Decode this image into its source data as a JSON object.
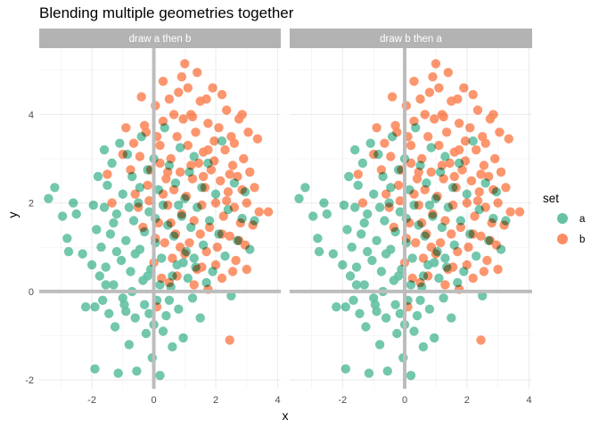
{
  "chart_data": {
    "type": "scatter",
    "title": "Blending multiple geometries together",
    "xlabel": "x",
    "ylabel": "y",
    "xlim": [
      -3.7,
      4.1
    ],
    "ylim": [
      -2.2,
      5.5
    ],
    "x_ticks": [
      -2,
      0,
      2,
      4
    ],
    "y_ticks": [
      -2,
      0,
      2,
      4
    ],
    "grid": true,
    "reference_lines": {
      "vertical_x": 0,
      "horizontal_y": 0
    },
    "legend": {
      "title": "set",
      "position": "right",
      "entries": [
        {
          "name": "a",
          "color": "#66c2a5"
        },
        {
          "name": "b",
          "color": "#fc8d62"
        }
      ]
    },
    "blend_color": "#6b8350",
    "panels": [
      {
        "strip": "draw a then b",
        "draw_order": [
          "a",
          "b"
        ]
      },
      {
        "strip": "draw b then a",
        "draw_order": [
          "b",
          "a"
        ]
      }
    ],
    "series": [
      {
        "name": "a",
        "color": "#66c2a5",
        "points": [
          [
            -3.4,
            2.1
          ],
          [
            -3.2,
            2.35
          ],
          [
            -2.95,
            1.7
          ],
          [
            -2.8,
            1.2
          ],
          [
            -2.75,
            0.9
          ],
          [
            -2.6,
            2.0
          ],
          [
            -2.3,
            0.85
          ],
          [
            -2.2,
            -0.35
          ],
          [
            -2.0,
            0.6
          ],
          [
            -1.95,
            1.95
          ],
          [
            -1.9,
            -1.75
          ],
          [
            -1.85,
            1.4
          ],
          [
            -1.8,
            2.6
          ],
          [
            -1.75,
            0.35
          ],
          [
            -1.7,
            1.0
          ],
          [
            -1.65,
            -0.2
          ],
          [
            -1.6,
            1.9
          ],
          [
            -1.55,
            0.55
          ],
          [
            -1.5,
            2.4
          ],
          [
            -1.45,
            -0.5
          ],
          [
            -1.4,
            1.3
          ],
          [
            -1.35,
            2.9
          ],
          [
            -1.3,
            0.15
          ],
          [
            -1.25,
            -0.8
          ],
          [
            -1.2,
            1.75
          ],
          [
            -1.15,
            -1.85
          ],
          [
            -1.1,
            3.35
          ],
          [
            -1.05,
            0.7
          ],
          [
            -1.0,
            2.2
          ],
          [
            -0.95,
            -0.3
          ],
          [
            -0.9,
            1.15
          ],
          [
            -0.85,
            3.1
          ],
          [
            -0.8,
            -1.2
          ],
          [
            -0.75,
            0.45
          ],
          [
            -0.7,
            2.6
          ],
          [
            -0.65,
            1.6
          ],
          [
            -0.6,
            -0.6
          ],
          [
            -0.55,
            -1.8
          ],
          [
            -0.5,
            2.0
          ],
          [
            -0.45,
            0.95
          ],
          [
            -0.4,
            3.5
          ],
          [
            -0.35,
            0.25
          ],
          [
            -0.3,
            1.35
          ],
          [
            -0.25,
            -0.95
          ],
          [
            -0.2,
            2.75
          ],
          [
            -0.15,
            1.8
          ],
          [
            -0.1,
            0.5
          ],
          [
            -0.05,
            -1.5
          ],
          [
            0.0,
            3.0
          ],
          [
            0.05,
            1.1
          ],
          [
            0.1,
            -0.2
          ],
          [
            0.15,
            2.3
          ],
          [
            0.2,
            -1.9
          ],
          [
            0.25,
            0.75
          ],
          [
            0.3,
            1.95
          ],
          [
            0.35,
            3.7
          ],
          [
            0.4,
            -0.55
          ],
          [
            0.45,
            1.5
          ],
          [
            0.5,
            2.85
          ],
          [
            0.55,
            0.1
          ],
          [
            0.6,
            -1.25
          ],
          [
            0.65,
            1.25
          ],
          [
            0.7,
            2.45
          ],
          [
            0.75,
            0.6
          ],
          [
            0.8,
            -0.4
          ],
          [
            0.85,
            3.25
          ],
          [
            0.9,
            1.7
          ],
          [
            0.95,
            -1.05
          ],
          [
            1.0,
            2.1
          ],
          [
            1.05,
            0.9
          ],
          [
            1.1,
            0.3
          ],
          [
            1.15,
            2.7
          ],
          [
            1.2,
            1.45
          ],
          [
            1.25,
            -0.15
          ],
          [
            1.3,
            3.05
          ],
          [
            1.35,
            0.55
          ],
          [
            1.4,
            1.9
          ],
          [
            1.5,
            -0.6
          ],
          [
            1.55,
            2.35
          ],
          [
            1.6,
            1.05
          ],
          [
            1.7,
            0.2
          ],
          [
            1.75,
            2.9
          ],
          [
            1.8,
            1.6
          ],
          [
            1.9,
            0.45
          ],
          [
            2.0,
            2.2
          ],
          [
            2.1,
            1.3
          ],
          [
            2.2,
            3.4
          ],
          [
            2.3,
            0.8
          ],
          [
            2.4,
            1.85
          ],
          [
            2.5,
            -0.1
          ],
          [
            2.6,
            2.45
          ],
          [
            2.7,
            1.15
          ],
          [
            2.85,
            1.65
          ],
          [
            2.95,
            2.25
          ],
          [
            3.1,
            0.95
          ],
          [
            3.25,
            1.6
          ],
          [
            -1.6,
            3.2
          ],
          [
            -1.2,
            0.9
          ],
          [
            -0.7,
            0.0
          ],
          [
            -0.3,
            -0.3
          ],
          [
            0.2,
            0.15
          ],
          [
            0.6,
            0.35
          ],
          [
            -1.9,
            -0.35
          ],
          [
            -0.9,
            -0.45
          ],
          [
            0.0,
            -0.75
          ],
          [
            0.3,
            -0.9
          ],
          [
            -0.6,
            0.85
          ],
          [
            -1.3,
            1.55
          ],
          [
            0.8,
            1.95
          ],
          [
            -0.2,
            0.35
          ],
          [
            -2.5,
            1.75
          ],
          [
            -1.0,
            -0.15
          ],
          [
            0.5,
            -0.2
          ],
          [
            -0.45,
            2.35
          ],
          [
            1.3,
            0.75
          ],
          [
            -0.15,
            -0.5
          ],
          [
            -1.55,
            0.15
          ],
          [
            0.05,
            1.65
          ],
          [
            -0.8,
            1.9
          ],
          [
            0.95,
            0.65
          ]
        ]
      },
      {
        "name": "b",
        "color": "#fc8d62",
        "points": [
          [
            -0.25,
            3.6
          ],
          [
            -0.2,
            2.4
          ],
          [
            -0.4,
            4.4
          ],
          [
            -0.5,
            1.9
          ],
          [
            0.05,
            4.2
          ],
          [
            0.1,
            3.5
          ],
          [
            0.2,
            2.9
          ],
          [
            0.3,
            3.85
          ],
          [
            0.45,
            1.95
          ],
          [
            0.5,
            4.35
          ],
          [
            0.55,
            3.0
          ],
          [
            0.65,
            2.3
          ],
          [
            0.7,
            1.3
          ],
          [
            0.75,
            3.5
          ],
          [
            0.8,
            4.5
          ],
          [
            0.85,
            2.7
          ],
          [
            0.9,
            1.75
          ],
          [
            0.95,
            3.9
          ],
          [
            1.0,
            5.15
          ],
          [
            1.05,
            2.15
          ],
          [
            1.1,
            3.3
          ],
          [
            1.15,
            1.1
          ],
          [
            1.2,
            4.0
          ],
          [
            1.25,
            2.55
          ],
          [
            1.3,
            1.6
          ],
          [
            1.35,
            3.6
          ],
          [
            1.4,
            0.5
          ],
          [
            1.45,
            2.9
          ],
          [
            1.5,
            4.3
          ],
          [
            1.55,
            1.95
          ],
          [
            1.6,
            3.15
          ],
          [
            1.65,
            2.35
          ],
          [
            1.7,
            0.9
          ],
          [
            1.75,
            3.8
          ],
          [
            1.8,
            1.45
          ],
          [
            1.85,
            2.75
          ],
          [
            1.9,
            4.6
          ],
          [
            1.95,
            3.4
          ],
          [
            2.0,
            2.0
          ],
          [
            2.05,
            1.0
          ],
          [
            2.1,
            3.7
          ],
          [
            2.15,
            2.5
          ],
          [
            2.2,
            0.3
          ],
          [
            2.25,
            1.7
          ],
          [
            2.3,
            3.2
          ],
          [
            2.35,
            4.1
          ],
          [
            2.4,
            2.25
          ],
          [
            2.45,
            1.25
          ],
          [
            2.5,
            3.5
          ],
          [
            2.55,
            2.85
          ],
          [
            2.6,
            1.9
          ],
          [
            2.65,
            0.7
          ],
          [
            2.7,
            2.6
          ],
          [
            2.75,
            3.9
          ],
          [
            2.8,
            1.55
          ],
          [
            2.85,
            2.3
          ],
          [
            2.9,
            3.0
          ],
          [
            2.95,
            1.05
          ],
          [
            3.0,
            2.0
          ],
          [
            3.1,
            2.7
          ],
          [
            3.2,
            1.5
          ],
          [
            3.35,
            3.45
          ],
          [
            3.4,
            1.8
          ],
          [
            3.7,
            1.8
          ],
          [
            2.45,
            -1.1
          ],
          [
            0.0,
            0.65
          ],
          [
            0.1,
            -0.35
          ],
          [
            0.25,
            0.3
          ],
          [
            0.35,
            1.1
          ],
          [
            0.4,
            2.55
          ],
          [
            0.6,
            0.75
          ],
          [
            -0.6,
            2.2
          ],
          [
            -0.45,
            3.05
          ],
          [
            -0.3,
            3.75
          ],
          [
            -0.35,
            1.45
          ],
          [
            -0.65,
            3.35
          ],
          [
            -0.75,
            2.75
          ],
          [
            -0.9,
            3.7
          ],
          [
            -1.0,
            3.1
          ],
          [
            -1.5,
            2.65
          ],
          [
            -1.35,
            2.0
          ],
          [
            -0.15,
            2.05
          ],
          [
            0.15,
            1.55
          ],
          [
            0.3,
            2.2
          ],
          [
            0.5,
            0.2
          ],
          [
            0.75,
            0.35
          ],
          [
            1.0,
            0.85
          ],
          [
            1.3,
            0.15
          ],
          [
            1.55,
            0.55
          ],
          [
            1.75,
            0.05
          ],
          [
            2.0,
            0.6
          ],
          [
            2.2,
            1.3
          ],
          [
            2.55,
            0.45
          ],
          [
            1.1,
            4.6
          ],
          [
            0.9,
            4.85
          ],
          [
            1.4,
            4.95
          ],
          [
            0.65,
            4.0
          ],
          [
            0.3,
            4.75
          ],
          [
            1.7,
            4.35
          ],
          [
            2.2,
            4.45
          ],
          [
            2.85,
            4.0
          ],
          [
            2.6,
            3.35
          ],
          [
            3.05,
            3.6
          ],
          [
            3.25,
            2.35
          ],
          [
            1.6,
            2.6
          ],
          [
            1.2,
            2.85
          ],
          [
            0.85,
            1.0
          ],
          [
            1.5,
            1.3
          ],
          [
            2.35,
            2.05
          ],
          [
            1.95,
            2.95
          ],
          [
            2.75,
            1.15
          ],
          [
            3.0,
            0.5
          ],
          [
            0.55,
            1.55
          ],
          [
            0.2,
            3.3
          ],
          [
            -0.1,
            2.75
          ],
          [
            1.25,
            3.95
          ],
          [
            1.75,
            3.2
          ],
          [
            2.45,
            2.65
          ],
          [
            0.05,
            1.2
          ],
          [
            0.45,
            2.7
          ]
        ]
      }
    ]
  }
}
